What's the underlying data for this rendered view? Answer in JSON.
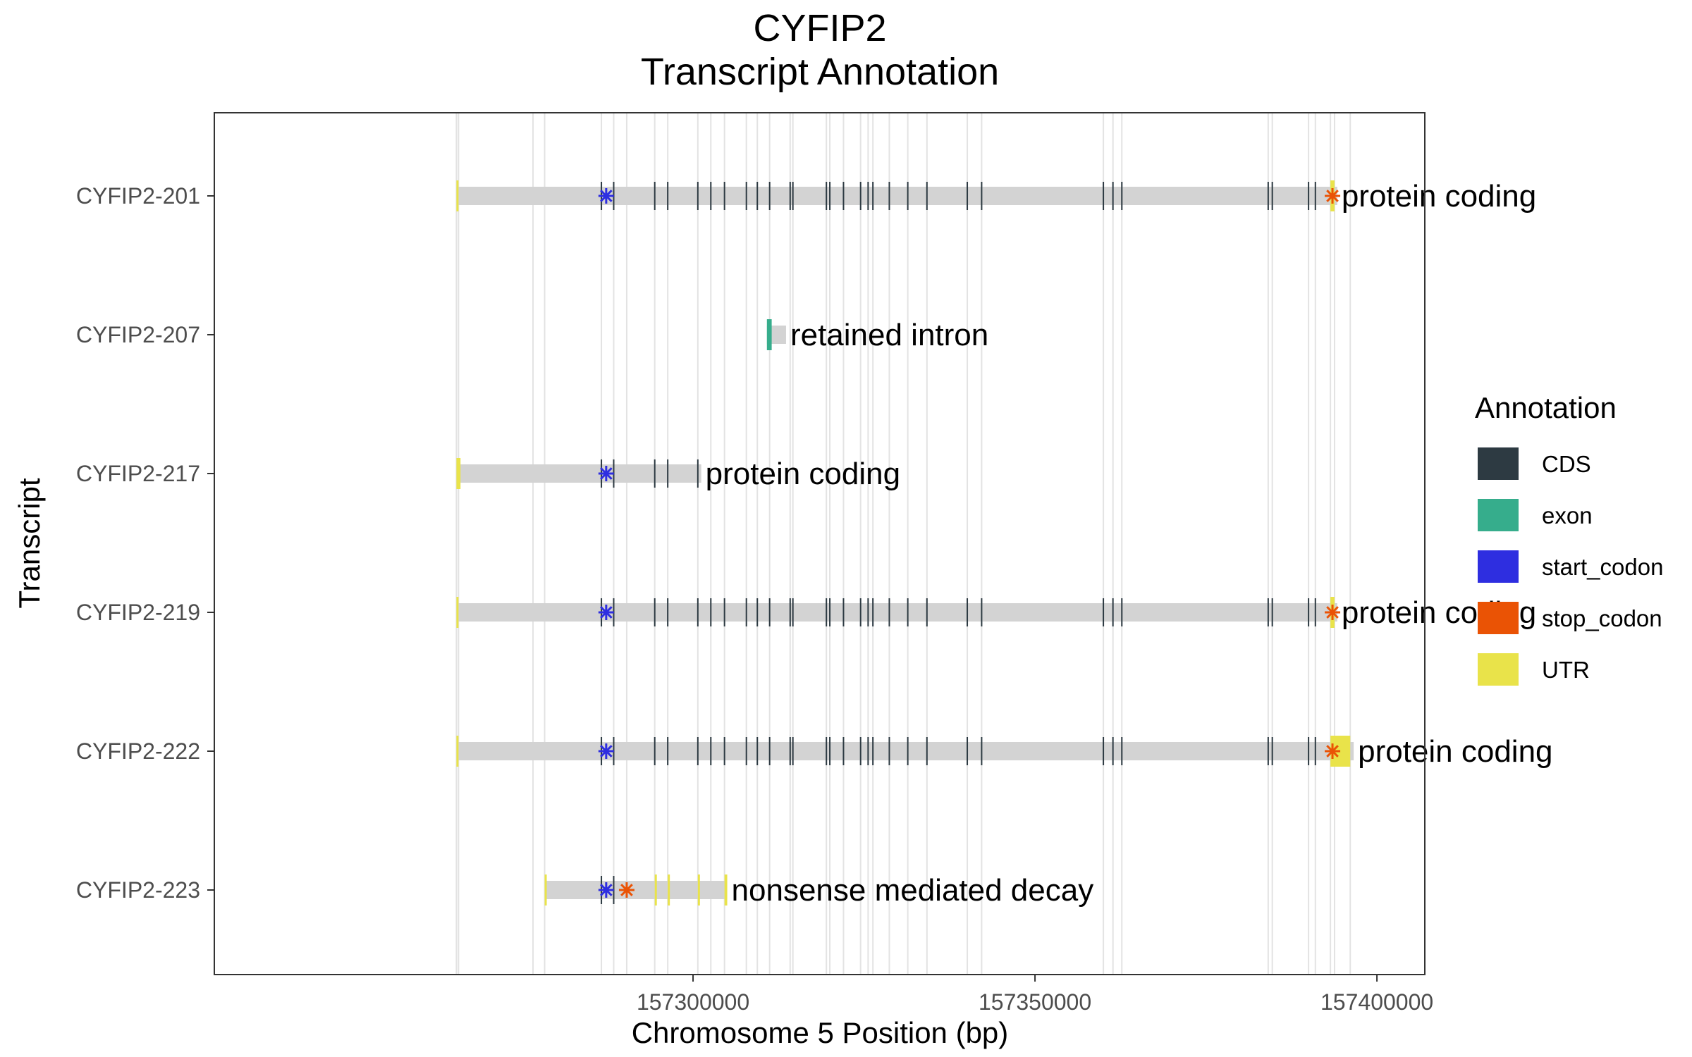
{
  "chart_data": {
    "type": "gene-track",
    "title": [
      "CYFIP2",
      "Transcript Annotation"
    ],
    "xlabel": "Chromosome 5 Position (bp)",
    "ylabel": "Transcript",
    "xlim": [
      157230000,
      157407000
    ],
    "x_ticks": [
      157300000,
      157350000,
      157400000
    ],
    "x_tick_labels": [
      "157300000",
      "157350000",
      "157400000"
    ],
    "grid": true,
    "legend_position": "right",
    "legend": {
      "title": "Annotation",
      "items": [
        {
          "name": "CDS",
          "color": "#2d3a42"
        },
        {
          "name": "exon",
          "color": "#36ad8c"
        },
        {
          "name": "start_codon",
          "color": "#2e2ee0"
        },
        {
          "name": "stop_codon",
          "color": "#ea5305"
        },
        {
          "name": "UTR",
          "color": "#e9e34a"
        }
      ]
    },
    "transcripts": [
      {
        "name": "CYFIP2-223",
        "biotype": "nonsense mediated decay",
        "start": 157278300,
        "end": 157305000,
        "cds": [
          157286600,
          157288400
        ],
        "utr": [
          [
            157278300,
            157278500
          ],
          [
            157294400,
            157294600
          ],
          [
            157296300,
            157296500
          ],
          [
            157300700,
            157300900
          ],
          [
            157304600,
            157305000
          ]
        ],
        "start_codon": 157287300,
        "stop_codon": 157290300
      },
      {
        "name": "CYFIP2-222",
        "biotype": "protein coding",
        "start": 157265400,
        "end": 157396600,
        "cds": [
          157286600,
          157288400,
          157294400,
          157296300,
          157300700,
          157302600,
          157304600,
          157307800,
          157309400,
          157311200,
          157314200,
          157314600,
          157319500,
          157320000,
          157322000,
          157324500,
          157325600,
          157326300,
          157328700,
          157331400,
          157334200,
          157340100,
          157342200,
          157360000,
          157361400,
          157362700,
          157384100,
          157384700,
          157390000,
          157391000
        ],
        "utr": [
          [
            157265400,
            157265700
          ],
          [
            157393200,
            157396100
          ]
        ],
        "start_codon": 157287300,
        "stop_codon": 157393500
      },
      {
        "name": "CYFIP2-219",
        "biotype": "protein coding",
        "start": 157265400,
        "end": 157394200,
        "cds": [
          157286600,
          157288400,
          157294400,
          157296300,
          157300700,
          157302600,
          157304600,
          157307800,
          157309400,
          157311200,
          157314200,
          157314600,
          157319500,
          157320000,
          157322000,
          157324500,
          157325600,
          157326300,
          157328700,
          157331400,
          157334200,
          157340100,
          157342200,
          157360000,
          157361400,
          157362700,
          157384100,
          157384700,
          157390000,
          157391000
        ],
        "utr": [
          [
            157265400,
            157265700
          ],
          [
            157393200,
            157393800
          ]
        ],
        "start_codon": 157287300,
        "stop_codon": 157393500
      },
      {
        "name": "CYFIP2-217",
        "biotype": "protein coding",
        "start": 157265400,
        "end": 157301200,
        "cds": [
          157286600,
          157288400,
          157294400,
          157296300,
          157300700
        ],
        "utr": [
          [
            157265400,
            157266000
          ]
        ],
        "start_codon": 157287300,
        "stop_codon": null
      },
      {
        "name": "CYFIP2-207",
        "biotype": "retained intron",
        "start": 157310800,
        "end": 157313600,
        "exons": [
          [
            157310800,
            157311500
          ]
        ],
        "start_codon": null,
        "stop_codon": null
      },
      {
        "name": "CYFIP2-201",
        "biotype": "protein coding",
        "start": 157265400,
        "end": 157394200,
        "cds": [
          157286600,
          157288400,
          157294400,
          157296300,
          157300700,
          157302600,
          157304600,
          157307800,
          157309400,
          157311200,
          157314200,
          157314600,
          157319500,
          157320000,
          157322000,
          157324500,
          157325600,
          157326300,
          157328700,
          157331400,
          157334200,
          157340100,
          157342200,
          157360000,
          157361400,
          157362700,
          157384100,
          157384700,
          157390000,
          157391000
        ],
        "utr": [
          [
            157265400,
            157265700
          ],
          [
            157393200,
            157393800
          ]
        ],
        "start_codon": 157287300,
        "stop_codon": 157393500
      }
    ],
    "gridlines": [
      157265400,
      157265700,
      157276600,
      157278300,
      157286600,
      157288400,
      157290300,
      157294400,
      157296300,
      157300700,
      157302600,
      157304600,
      157307800,
      157309400,
      157311200,
      157314200,
      157314600,
      157319500,
      157320000,
      157322000,
      157324500,
      157325600,
      157326300,
      157328700,
      157331400,
      157334200,
      157340100,
      157342200,
      157360000,
      157361400,
      157362700,
      157384100,
      157384700,
      157390000,
      157391000,
      157393200,
      157393800,
      157396100
    ]
  }
}
